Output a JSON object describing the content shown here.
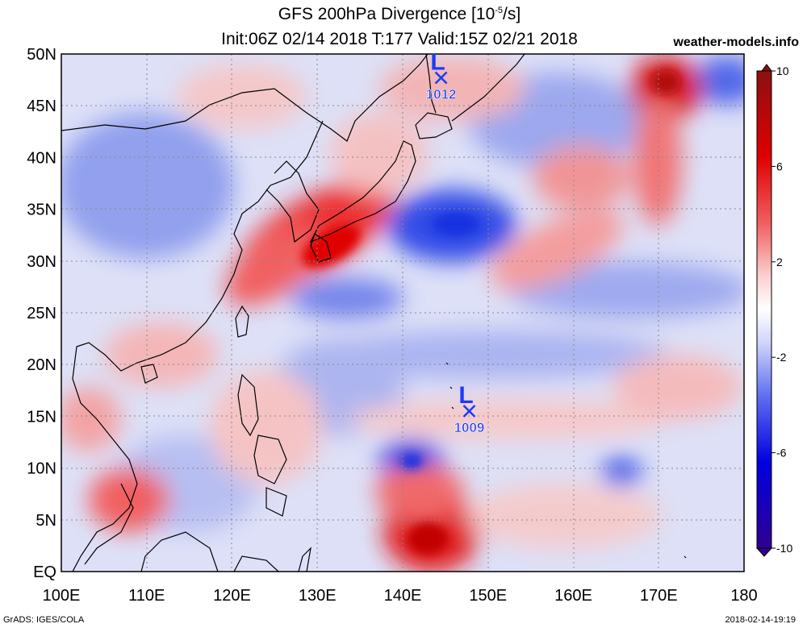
{
  "title_line1": "GFS 200hPa Divergence [10",
  "title_units_exp": "-5",
  "title_units_end": "/s]",
  "title_line2": "Init:06Z 02/14 2018 T:177 Valid:15Z 02/21 2018",
  "site": "weather-models.info",
  "credit": "GrADS: IGES/COLA",
  "timestamp": "2018-02-14-19:19",
  "map": {
    "lon_range": [
      100,
      180
    ],
    "lat_range": [
      0,
      50
    ],
    "lat_labels": [
      "EQ",
      "5N",
      "10N",
      "15N",
      "20N",
      "25N",
      "30N",
      "35N",
      "40N",
      "45N",
      "50N"
    ],
    "lon_labels": [
      "100E",
      "110E",
      "120E",
      "130E",
      "140E",
      "150E",
      "160E",
      "170E",
      "180"
    ],
    "colors": {
      "divergence": "#e8000c",
      "convergence": "#1432f0",
      "low_marker": "#1a3cf5",
      "coast": "#000000"
    }
  },
  "lows": [
    {
      "lon": 144.5,
      "lat": 47.7,
      "letter": "L",
      "pressure": "1012"
    },
    {
      "lon": 147.8,
      "lat": 15.5,
      "letter": "L",
      "pressure": "1009"
    }
  ],
  "colorbar": {
    "min": -10,
    "max": 10,
    "labels": [
      "10",
      "6",
      "2",
      "-2",
      "-6",
      "-10"
    ]
  }
}
